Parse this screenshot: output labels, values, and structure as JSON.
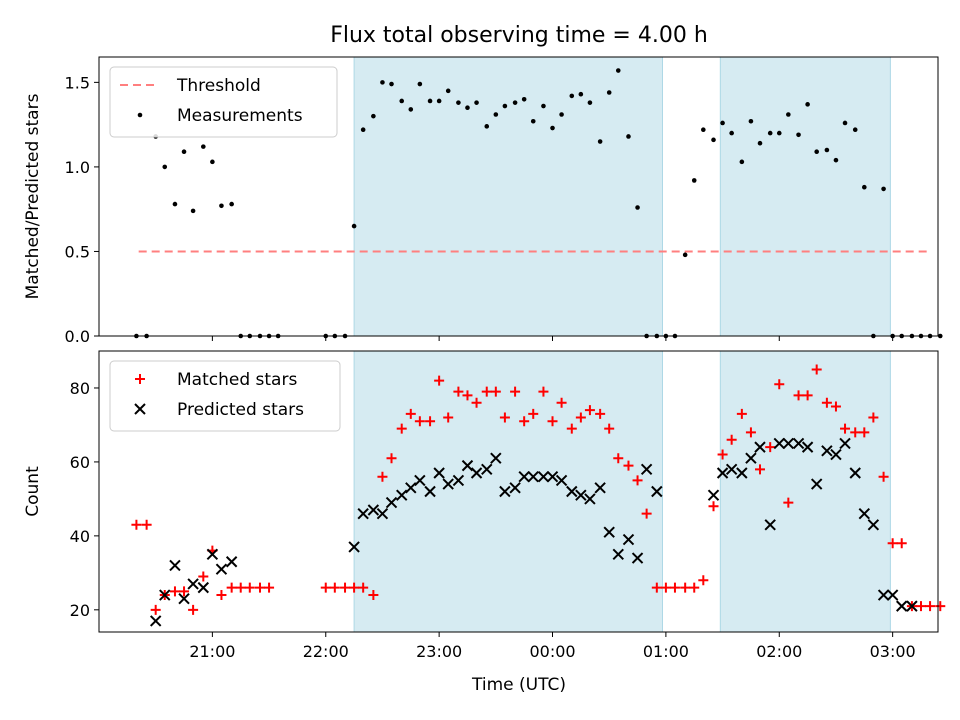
{
  "chart_data": {
    "title": "Flux total observing time = 4.00 h",
    "x_label": "Time (UTC)",
    "x_ticks": [
      "21:00",
      "22:00",
      "23:00",
      "00:00",
      "01:00",
      "02:00",
      "03:00"
    ],
    "x_tick_hours": [
      21,
      22,
      23,
      24,
      25,
      26,
      27
    ],
    "x_range_hours": [
      20.0,
      27.4
    ],
    "shaded_intervals_hours": [
      [
        22.25,
        24.97
      ],
      [
        25.48,
        26.98
      ]
    ],
    "shade_color": "#add8e6",
    "panels": [
      {
        "type": "scatter",
        "y_label": "Matched/Predicted stars",
        "y_range": [
          0,
          1.65
        ],
        "y_ticks": [
          0.0,
          0.5,
          1.0,
          1.5
        ],
        "y_tick_labels": [
          "0.0",
          "0.5",
          "1.0",
          "1.5"
        ],
        "threshold": {
          "name": "Threshold",
          "value": 0.5,
          "x_range_hours": [
            20.35,
            27.3
          ],
          "color": "#ff7f7f"
        },
        "series": [
          {
            "name": "Measurements",
            "marker": "dot",
            "color": "#000000",
            "x": [
              20.33,
              20.42,
              20.5,
              20.58,
              20.67,
              20.75,
              20.83,
              20.92,
              21.0,
              21.08,
              21.17,
              21.25,
              21.33,
              21.42,
              21.5,
              21.58,
              22.0,
              22.08,
              22.17,
              22.25,
              22.33,
              22.42,
              22.5,
              22.58,
              22.67,
              22.75,
              22.83,
              22.92,
              23.0,
              23.08,
              23.17,
              23.25,
              23.33,
              23.42,
              23.5,
              23.58,
              23.67,
              23.75,
              23.83,
              23.92,
              24.0,
              24.08,
              24.17,
              24.25,
              24.33,
              24.42,
              24.5,
              24.58,
              24.67,
              24.75,
              24.83,
              24.92,
              25.0,
              25.08,
              25.17,
              25.25,
              25.33,
              25.42,
              25.5,
              25.58,
              25.67,
              25.75,
              25.83,
              25.92,
              26.0,
              26.08,
              26.17,
              26.25,
              26.33,
              26.42,
              26.5,
              26.58,
              26.67,
              26.75,
              26.83,
              26.92,
              27.0,
              27.08,
              27.17,
              27.25,
              27.33,
              27.42
            ],
            "y": [
              0.0,
              0.0,
              1.18,
              1.0,
              0.78,
              1.09,
              0.74,
              1.12,
              1.03,
              0.77,
              0.78,
              0.0,
              0.0,
              0.0,
              0.0,
              0.0,
              0.0,
              0.0,
              0.0,
              0.65,
              1.22,
              1.3,
              1.5,
              1.49,
              1.39,
              1.34,
              1.49,
              1.39,
              1.39,
              1.45,
              1.38,
              1.35,
              1.38,
              1.24,
              1.31,
              1.36,
              1.38,
              1.4,
              1.27,
              1.36,
              1.23,
              1.31,
              1.42,
              1.43,
              1.38,
              1.15,
              1.44,
              1.57,
              1.18,
              0.76,
              0.0,
              0.0,
              0.0,
              0.0,
              0.48,
              0.92,
              1.22,
              1.16,
              1.26,
              1.2,
              1.03,
              1.27,
              1.14,
              1.2,
              1.2,
              1.31,
              1.19,
              1.37,
              1.09,
              1.1,
              1.04,
              1.26,
              1.22,
              0.88,
              0.0,
              0.87,
              0.0,
              0.0,
              0.0,
              0.0,
              0.0,
              0.0
            ]
          }
        ]
      },
      {
        "type": "scatter",
        "y_label": "Count",
        "y_range": [
          14,
          90
        ],
        "y_ticks": [
          20,
          40,
          60,
          80
        ],
        "y_tick_labels": [
          "20",
          "40",
          "60",
          "80"
        ],
        "series": [
          {
            "name": "Matched stars",
            "marker": "plus",
            "color": "#ff0000",
            "x": [
              20.33,
              20.42,
              20.5,
              20.58,
              20.67,
              20.75,
              20.83,
              20.92,
              21.0,
              21.08,
              21.17,
              21.25,
              21.33,
              21.42,
              21.5,
              22.0,
              22.08,
              22.17,
              22.25,
              22.33,
              22.42,
              22.5,
              22.58,
              22.67,
              22.75,
              22.83,
              22.92,
              23.0,
              23.08,
              23.17,
              23.25,
              23.33,
              23.42,
              23.5,
              23.58,
              23.67,
              23.75,
              23.83,
              23.92,
              24.0,
              24.08,
              24.17,
              24.25,
              24.33,
              24.42,
              24.5,
              24.58,
              24.67,
              24.75,
              24.83,
              24.92,
              25.0,
              25.08,
              25.17,
              25.25,
              25.33,
              25.42,
              25.5,
              25.58,
              25.67,
              25.75,
              25.83,
              25.92,
              26.0,
              26.08,
              26.17,
              26.25,
              26.33,
              26.42,
              26.5,
              26.58,
              26.67,
              26.75,
              26.83,
              26.92,
              27.0,
              27.08,
              27.17,
              27.25,
              27.33,
              27.42
            ],
            "y": [
              43,
              43,
              20,
              24,
              25,
              25,
              20,
              29,
              36,
              24,
              26,
              26,
              26,
              26,
              26,
              26,
              26,
              26,
              26,
              26,
              24,
              56,
              61,
              69,
              73,
              71,
              71,
              82,
              72,
              79,
              78,
              76,
              79,
              79,
              72,
              79,
              71,
              73,
              79,
              71,
              76,
              69,
              72,
              74,
              73,
              69,
              61,
              59,
              55,
              46,
              26,
              26,
              26,
              26,
              26,
              28,
              48,
              62,
              66,
              73,
              68,
              58,
              64,
              81,
              49,
              78,
              78,
              85,
              76,
              75,
              69,
              68,
              68,
              72,
              56,
              38,
              38,
              21,
              21,
              21,
              21
            ]
          },
          {
            "name": "Predicted stars",
            "marker": "x",
            "color": "#000000",
            "x": [
              20.5,
              20.58,
              20.67,
              20.75,
              20.83,
              20.92,
              21.0,
              21.08,
              21.17,
              22.25,
              22.33,
              22.42,
              22.5,
              22.58,
              22.67,
              22.75,
              22.83,
              22.92,
              23.0,
              23.08,
              23.17,
              23.25,
              23.33,
              23.42,
              23.5,
              23.58,
              23.67,
              23.75,
              23.83,
              23.92,
              24.0,
              24.08,
              24.17,
              24.25,
              24.33,
              24.42,
              24.5,
              24.58,
              24.67,
              24.75,
              24.83,
              24.92,
              25.42,
              25.5,
              25.58,
              25.67,
              25.75,
              25.83,
              25.92,
              26.0,
              26.08,
              26.17,
              26.25,
              26.33,
              26.42,
              26.5,
              26.58,
              26.67,
              26.75,
              26.83,
              26.92,
              27.0,
              27.08,
              27.17
            ],
            "y": [
              17,
              24,
              32,
              23,
              27,
              26,
              35,
              31,
              33,
              37,
              46,
              47,
              46,
              49,
              51,
              53,
              55,
              52,
              57,
              54,
              55,
              59,
              57,
              58,
              61,
              52,
              53,
              56,
              56,
              56,
              56,
              55,
              52,
              51,
              50,
              53,
              41,
              35,
              39,
              34,
              58,
              52,
              51,
              57,
              58,
              57,
              61,
              64,
              43,
              65,
              65,
              65,
              64,
              54,
              63,
              62,
              65,
              57,
              46,
              43,
              24,
              24,
              21,
              21
            ]
          }
        ]
      }
    ]
  }
}
